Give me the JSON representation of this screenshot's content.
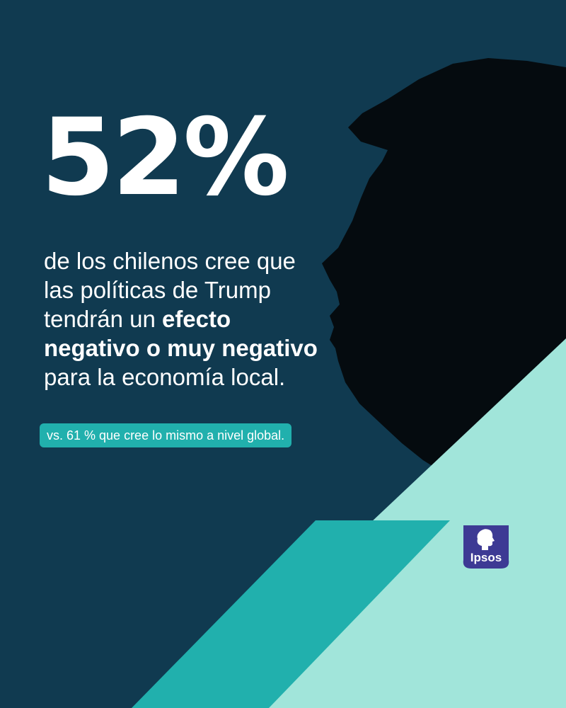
{
  "headline": {
    "value": "52%"
  },
  "description": {
    "line1": "de los chilenos cree que",
    "line2": "las políticas de Trump",
    "line3_regular": "tendrán un ",
    "line3_bold": "efecto",
    "line4_bold": "negativo o muy negativo",
    "line5": "para la economía local."
  },
  "comparison": {
    "text": "vs. 61 % que cree lo mismo a nivel global."
  },
  "brand": {
    "logo_text": "Ipsos",
    "logo_color": "#3d3a94"
  },
  "colors": {
    "background": "#103a50",
    "light_teal": "#a1e5da",
    "teal": "#21b0ad",
    "silhouette": "#050b0f",
    "text": "#ffffff"
  },
  "imagery": {
    "silhouette": "profile-silhouette"
  }
}
